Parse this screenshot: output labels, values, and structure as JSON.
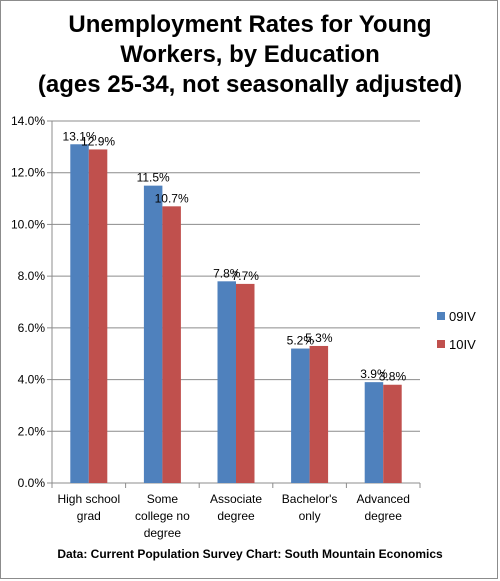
{
  "chart_data": {
    "type": "bar",
    "title_lines": [
      "Unemployment Rates for Young",
      "Workers, by Education",
      "(ages 25-34, not seasonally adjusted)"
    ],
    "categories": [
      [
        "High school",
        "grad"
      ],
      [
        "Some",
        "college no",
        "degree"
      ],
      [
        "Associate",
        "degree"
      ],
      [
        "Bachelor's",
        "only"
      ],
      [
        "Advanced",
        "degree"
      ]
    ],
    "series": [
      {
        "name": "09IV",
        "color": "#4f81bd",
        "values": [
          13.1,
          11.5,
          7.8,
          5.2,
          3.9
        ],
        "labels": [
          "13.1%",
          "11.5%",
          "7.8%",
          "5.2%",
          "3.9%"
        ]
      },
      {
        "name": "10IV",
        "color": "#c0504d",
        "values": [
          12.9,
          10.7,
          7.7,
          5.3,
          3.8
        ],
        "labels": [
          "12.9%",
          "10.7%",
          "7.7%",
          "5.3%",
          "3.8%"
        ]
      }
    ],
    "ylim": [
      0,
      14
    ],
    "y_ticks": [
      0,
      2,
      4,
      6,
      8,
      10,
      12,
      14
    ],
    "y_tick_labels": [
      "0.0%",
      "2.0%",
      "4.0%",
      "6.0%",
      "8.0%",
      "10.0%",
      "12.0%",
      "14.0%"
    ],
    "grid": true,
    "legend_position": "right",
    "source": "Data: Current Population Survey Chart: South Mountain Economics"
  }
}
